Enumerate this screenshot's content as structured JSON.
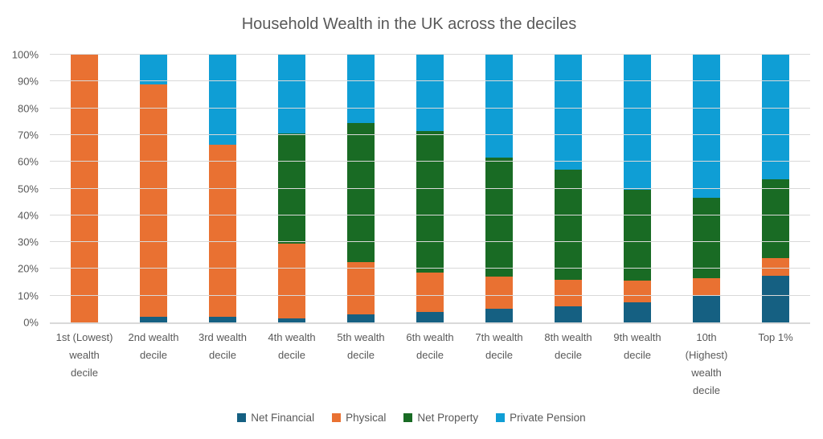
{
  "title": "Household Wealth in the UK across the deciles",
  "styles": {
    "title_color": "#595959",
    "axis_label_color": "#595959",
    "gridline_color": "#D9D9D9",
    "background_color": "#FFFFFF"
  },
  "chart_data": {
    "type": "bar",
    "stacked": true,
    "stack_unit": "percent",
    "title": "Household Wealth in the UK across the deciles",
    "categories": [
      "1st (Lowest)\nwealth\ndecile",
      "2nd wealth\ndecile",
      "3rd wealth\ndecile",
      "4th wealth\ndecile",
      "5th wealth\ndecile",
      "6th wealth\ndecile",
      "7th wealth\ndecile",
      "8th wealth\ndecile",
      "9th wealth\ndecile",
      "10th\n(Highest)\nwealth\ndecile",
      "Top 1%"
    ],
    "series": [
      {
        "name": "Net Financial",
        "color": "#156082",
        "values": [
          0,
          2,
          2,
          1.5,
          3,
          4,
          5,
          6,
          7.5,
          10,
          17.5
        ]
      },
      {
        "name": "Physical",
        "color": "#E97132",
        "values": [
          100,
          87,
          64.5,
          28,
          19.5,
          14.5,
          12,
          10,
          8,
          6.5,
          6.5
        ]
      },
      {
        "name": "Net Property",
        "color": "#196B24",
        "values": [
          0,
          0,
          0,
          41,
          52,
          53,
          44.5,
          41,
          34,
          30,
          29.5
        ]
      },
      {
        "name": "Private Pension",
        "color": "#0F9ED5",
        "values": [
          0,
          11,
          33.5,
          29.5,
          25.5,
          28.5,
          38.5,
          43,
          50.5,
          53.5,
          46.5
        ]
      }
    ],
    "ylim": [
      0,
      100
    ],
    "ytick_step": 10,
    "yticks": [
      "0%",
      "10%",
      "20%",
      "30%",
      "40%",
      "50%",
      "60%",
      "70%",
      "80%",
      "90%",
      "100%"
    ],
    "xlabel": "",
    "ylabel": "",
    "grid": true,
    "legend_position": "bottom"
  }
}
